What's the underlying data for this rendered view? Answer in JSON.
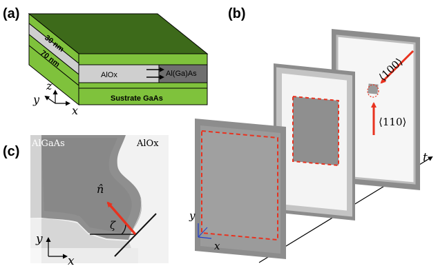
{
  "panels": {
    "a": "(a)",
    "b": "(b)",
    "c": "(c)"
  },
  "panel_a": {
    "layers": [
      {
        "label": "30 nm"
      },
      {
        "label": "70 nm"
      }
    ],
    "aloxide_label": "AlOx",
    "algaas_label": "Al(Ga)As",
    "substrate_label": "Sustrate GaAs",
    "axes": {
      "x": "x",
      "y": "y",
      "z": "z"
    },
    "colors": {
      "green_top": "#3f6b1c",
      "green_layer": "#86c940",
      "gray_layer": "#d0d0d0"
    }
  },
  "panel_b": {
    "direction_100": "⟨100⟩",
    "direction_110": "⟨110⟩",
    "time_axis": "t",
    "axes": {
      "x": "x",
      "y": "y"
    },
    "colors": {
      "dashed": "#e8321f",
      "arrow": "#e8321f"
    }
  },
  "panel_c": {
    "algaas_label": "AlGaAs",
    "alox_label": "AlOx",
    "normal_label": "n̂",
    "angle_label": "ζ",
    "axes": {
      "x": "x",
      "y": "y"
    },
    "colors": {
      "arrow": "#e8321f"
    }
  }
}
